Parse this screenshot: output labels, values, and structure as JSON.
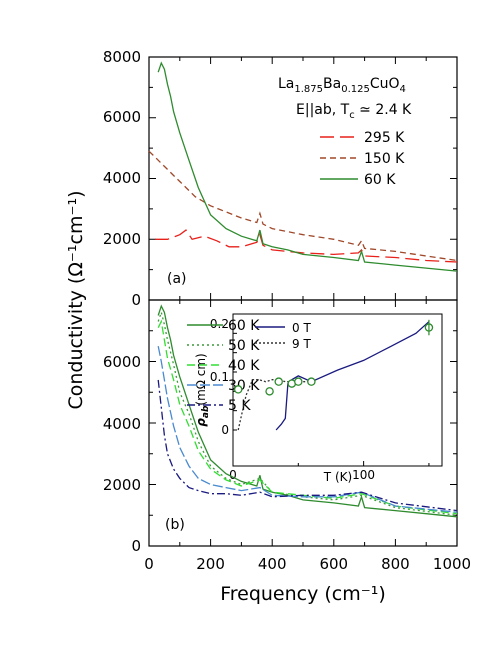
{
  "chart_data": [
    {
      "panel": "a",
      "type": "line",
      "panel_label": "(a)",
      "annotation": {
        "material": {
          "p1": "La",
          "s1": "1.875",
          "p2": "Ba",
          "s2": "0.125",
          "p3": "CuO",
          "s3": "4"
        },
        "condition": {
          "p1": "E||ab, T",
          "s1": "c",
          "p2": " ≃ 2.4 K"
        }
      },
      "xlabel": "Frequency (cm⁻¹)",
      "ylabel": "Conductivity (Ω⁻¹cm⁻¹)",
      "xlim": [
        0,
        1000
      ],
      "ylim": [
        0,
        8000
      ],
      "yticks": [
        "0",
        "2000",
        "4000",
        "6000",
        "8000"
      ],
      "legend_position": "top-right",
      "series": [
        {
          "name": "295 K",
          "color": "#e8201a",
          "dash": "14,6",
          "x": [
            20,
            60,
            100,
            120,
            140,
            180,
            220,
            260,
            300,
            350,
            360,
            370,
            400,
            500,
            600,
            680,
            690,
            700,
            800,
            900,
            1000
          ],
          "y": [
            2000,
            2000,
            2150,
            2300,
            2000,
            2100,
            1950,
            1750,
            1750,
            1900,
            2150,
            1800,
            1650,
            1550,
            1500,
            1550,
            1650,
            1450,
            1400,
            1300,
            1250
          ]
        },
        {
          "name": "150 K",
          "color": "#a0482a",
          "dash": "6,4",
          "x": [
            0,
            20,
            40,
            60,
            80,
            100,
            120,
            150,
            200,
            250,
            300,
            350,
            360,
            370,
            400,
            500,
            600,
            680,
            690,
            700,
            800,
            900,
            1000
          ],
          "y": [
            4900,
            4700,
            4500,
            4300,
            4100,
            3900,
            3700,
            3400,
            3100,
            2900,
            2700,
            2550,
            2850,
            2500,
            2350,
            2150,
            2000,
            1800,
            1950,
            1700,
            1600,
            1450,
            1300
          ]
        },
        {
          "name": "60 K",
          "color": "#2e8b2e",
          "dash": "",
          "x": [
            30,
            40,
            50,
            60,
            70,
            80,
            100,
            130,
            160,
            200,
            250,
            300,
            350,
            360,
            370,
            400,
            450,
            500,
            600,
            680,
            690,
            700,
            800,
            900,
            1000
          ],
          "y": [
            7500,
            7800,
            7600,
            7100,
            6700,
            6200,
            5500,
            4600,
            3700,
            2800,
            2350,
            2100,
            1950,
            2300,
            1850,
            1750,
            1650,
            1500,
            1400,
            1300,
            1600,
            1250,
            1150,
            1050,
            950
          ]
        }
      ]
    },
    {
      "panel": "b",
      "type": "line",
      "panel_label": "(b)",
      "xlabel": "Frequency (cm⁻¹)",
      "ylabel": "Conductivity (Ω⁻¹cm⁻¹)",
      "xlim": [
        0,
        1000
      ],
      "ylim": [
        0,
        8000
      ],
      "xticks": [
        "0",
        "200",
        "400",
        "600",
        "800",
        "1000"
      ],
      "yticks": [
        "0",
        "2000",
        "4000",
        "6000"
      ],
      "legend_position": "top-left",
      "series": [
        {
          "name": "60 K",
          "color": "#2e8b2e",
          "dash": "",
          "x": [
            30,
            40,
            50,
            60,
            70,
            80,
            100,
            130,
            160,
            200,
            250,
            300,
            350,
            360,
            370,
            400,
            450,
            500,
            600,
            680,
            690,
            700,
            800,
            900,
            1000
          ],
          "y": [
            7500,
            7800,
            7600,
            7100,
            6700,
            6200,
            5500,
            4600,
            3700,
            2800,
            2350,
            2100,
            1950,
            2300,
            1850,
            1750,
            1650,
            1500,
            1400,
            1300,
            1600,
            1250,
            1150,
            1050,
            950
          ]
        },
        {
          "name": "50 K",
          "color": "#3a9a3a",
          "dash": "2,3",
          "x": [
            30,
            40,
            50,
            60,
            80,
            100,
            130,
            160,
            200,
            250,
            300,
            360,
            400,
            500,
            600,
            690,
            800,
            1000
          ],
          "y": [
            7300,
            7600,
            7200,
            6700,
            5900,
            5000,
            4300,
            3400,
            2600,
            2200,
            2000,
            2200,
            1750,
            1600,
            1500,
            1650,
            1250,
            1000
          ]
        },
        {
          "name": "40 K",
          "color": "#33dd33",
          "dash": "8,4",
          "x": [
            30,
            40,
            50,
            60,
            80,
            100,
            130,
            160,
            200,
            250,
            300,
            360,
            400,
            500,
            600,
            690,
            800,
            1000
          ],
          "y": [
            7100,
            7300,
            6700,
            6100,
            5400,
            4600,
            3900,
            3100,
            2500,
            2150,
            1950,
            2150,
            1750,
            1650,
            1550,
            1700,
            1300,
            1050
          ]
        },
        {
          "name": "30 K",
          "color": "#4a8ad0",
          "dash": "10,3",
          "x": [
            30,
            40,
            50,
            60,
            80,
            100,
            130,
            160,
            200,
            250,
            300,
            360,
            400,
            500,
            600,
            690,
            800,
            1000
          ],
          "y": [
            6500,
            6000,
            5400,
            4800,
            3900,
            3200,
            2600,
            2200,
            2000,
            1900,
            1800,
            1900,
            1650,
            1600,
            1600,
            1750,
            1300,
            1100
          ]
        },
        {
          "name": "5 K",
          "color": "#1a1a80",
          "dash": "8,3,2,3",
          "x": [
            30,
            40,
            50,
            60,
            80,
            100,
            130,
            160,
            200,
            250,
            300,
            360,
            400,
            500,
            600,
            690,
            800,
            1000
          ],
          "y": [
            5400,
            4500,
            3600,
            3000,
            2500,
            2200,
            1900,
            1800,
            1700,
            1700,
            1650,
            1750,
            1600,
            1650,
            1650,
            1750,
            1400,
            1150
          ]
        }
      ]
    },
    {
      "panel": "b-inset",
      "type": "line",
      "xlabel": "T (K)",
      "ylabel": {
        "p1": "ρ",
        "s1": "ab",
        "p2": "(mΩ cm)"
      },
      "xlim": [
        0,
        160
      ],
      "ylim": [
        0,
        0.3
      ],
      "xticks": [
        "0",
        "100"
      ],
      "yticks": [
        "0",
        "0.1",
        "0.2"
      ],
      "legend_position": "top-left",
      "series": [
        {
          "name": "0 T",
          "color": "#1a1a80",
          "dash": "",
          "x": [
            33,
            37,
            40,
            42,
            45,
            50,
            60,
            80,
            100,
            120,
            140,
            150
          ],
          "y": [
            0,
            0.015,
            0.03,
            0.12,
            0.13,
            0.14,
            0.125,
            0.155,
            0.18,
            0.215,
            0.25,
            0.28
          ]
        },
        {
          "name": "9 T",
          "color": "#333333",
          "dash": "2,2",
          "x": [
            4,
            6,
            10,
            15,
            20,
            25,
            30,
            35,
            40,
            45,
            50,
            55,
            60
          ],
          "y": [
            0,
            0.03,
            0.09,
            0.13,
            0.13,
            0.125,
            0.13,
            0.13,
            0.125,
            0.125,
            0.125,
            0.125,
            0.125
          ]
        },
        {
          "name": "",
          "color": "#2e8b2e",
          "type": "scatter",
          "x": [
            4,
            28,
            35,
            45,
            50,
            60,
            150
          ],
          "y": [
            0.105,
            0.1,
            0.125,
            0.12,
            0.125,
            0.125,
            0.265
          ]
        }
      ]
    }
  ]
}
